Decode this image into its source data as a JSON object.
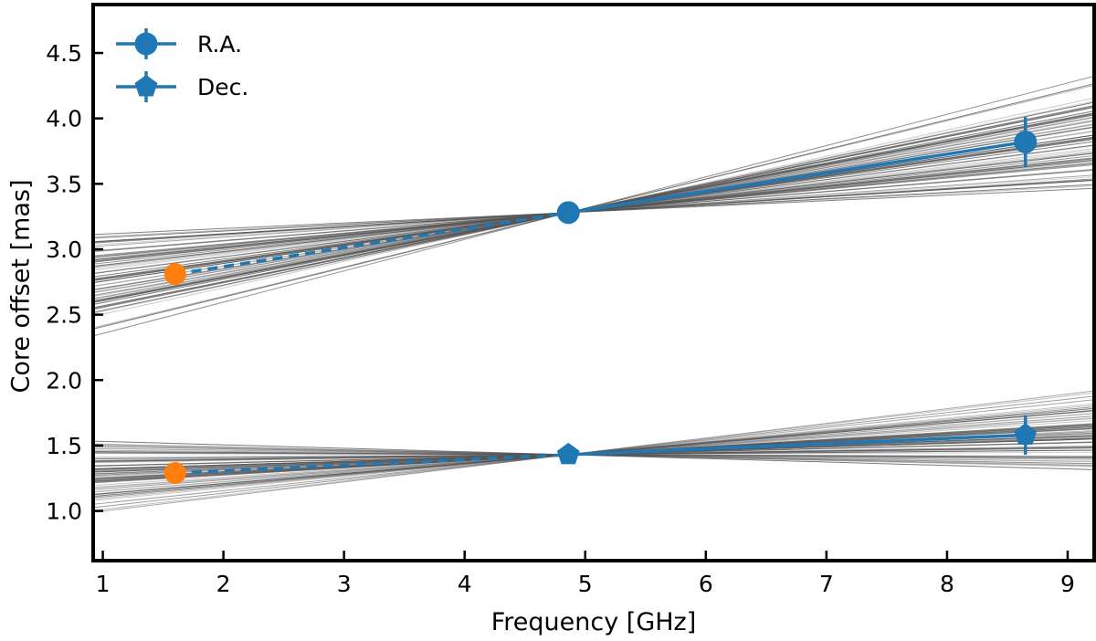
{
  "chart_data": {
    "type": "line",
    "title": "",
    "xlabel": "Frequency [GHz]",
    "ylabel": "Core offset [mas]",
    "xlim": [
      0.92,
      9.22
    ],
    "ylim": [
      0.62,
      4.87
    ],
    "xticks": [
      1,
      2,
      3,
      4,
      5,
      6,
      7,
      8,
      9
    ],
    "xtick_labels": [
      "1",
      "2",
      "3",
      "4",
      "5",
      "6",
      "7",
      "8",
      "9"
    ],
    "yticks": [
      1.0,
      1.5,
      2.0,
      2.5,
      3.0,
      3.5,
      4.0,
      4.5
    ],
    "ytick_labels": [
      "1.0",
      "1.5",
      "2.0",
      "2.5",
      "3.0",
      "3.5",
      "4.0",
      "4.5"
    ],
    "legend": {
      "placement": "top-left",
      "entries": [
        "R.A.",
        "Dec."
      ]
    },
    "series": [
      {
        "name": "R.A.",
        "marker": "circle",
        "color": "#1f77b4",
        "x": [
          4.86,
          8.65
        ],
        "y": [
          3.28,
          3.82
        ],
        "yerr": [
          0.0,
          0.19
        ]
      },
      {
        "name": "Dec.",
        "marker": "pentagon",
        "color": "#1f77b4",
        "x": [
          4.86,
          8.65
        ],
        "y": [
          1.43,
          1.58
        ],
        "yerr": [
          0.0,
          0.15
        ]
      }
    ],
    "extrapolated_points": [
      {
        "series": "R.A.",
        "x": 1.6,
        "y": 2.81,
        "color": "#ff7f0e",
        "marker": "circle"
      },
      {
        "series": "Dec.",
        "x": 1.6,
        "y": 1.29,
        "color": "#ff7f0e",
        "marker": "circle"
      }
    ],
    "fit_bundles": [
      {
        "series": "R.A.",
        "pivot": [
          4.86,
          3.28
        ],
        "slope_range": [
          -0.008,
          0.275
        ],
        "line_count": 70,
        "color": "#555555"
      },
      {
        "series": "Dec.",
        "pivot": [
          4.86,
          1.43
        ],
        "slope_range": [
          -0.06,
          0.14
        ],
        "line_count": 70,
        "color": "#555555"
      }
    ]
  }
}
